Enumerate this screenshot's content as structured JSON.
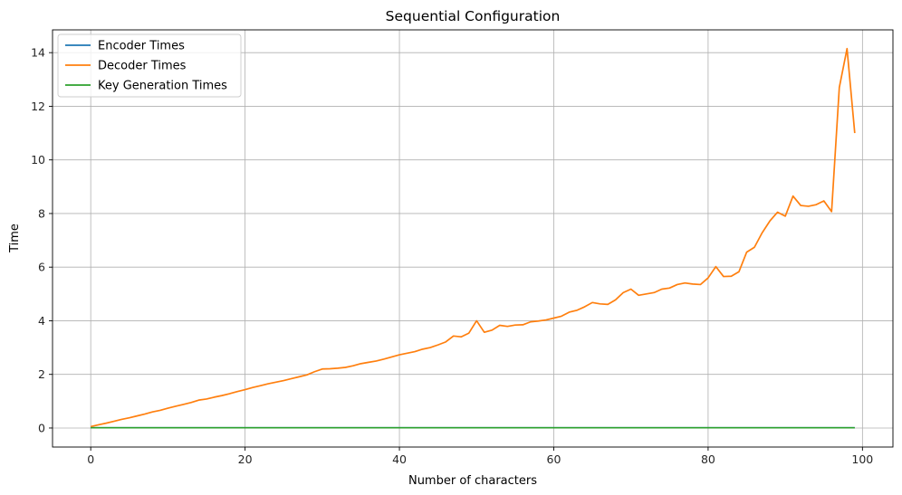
{
  "chart_data": {
    "type": "line",
    "title": "Sequential Configuration",
    "xlabel": "Number of characters",
    "ylabel": "Time",
    "xlim": [
      -4.95,
      103.95
    ],
    "ylim": [
      -0.71,
      14.85
    ],
    "xticks": [
      0,
      20,
      40,
      60,
      80,
      100
    ],
    "yticks": [
      0,
      2,
      4,
      6,
      8,
      10,
      12,
      14
    ],
    "grid": true,
    "legend_position": "top-left",
    "series": [
      {
        "name": "Encoder Times",
        "color": "#1f77b4",
        "x": [
          0,
          99
        ],
        "y": [
          0.01,
          0.01
        ]
      },
      {
        "name": "Decoder Times",
        "color": "#ff7f0e",
        "x": [
          0,
          1,
          2,
          3,
          4,
          5,
          6,
          7,
          8,
          9,
          10,
          11,
          12,
          13,
          14,
          15,
          16,
          17,
          18,
          19,
          20,
          21,
          22,
          23,
          24,
          25,
          26,
          27,
          28,
          29,
          30,
          31,
          32,
          33,
          34,
          35,
          36,
          37,
          38,
          39,
          40,
          41,
          42,
          43,
          44,
          45,
          46,
          47,
          48,
          49,
          50,
          51,
          52,
          53,
          54,
          55,
          56,
          57,
          58,
          59,
          60,
          61,
          62,
          63,
          64,
          65,
          66,
          67,
          68,
          69,
          70,
          71,
          72,
          73,
          74,
          75,
          76,
          77,
          78,
          79,
          80,
          81,
          82,
          83,
          84,
          85,
          86,
          87,
          88,
          89,
          90,
          91,
          92,
          93,
          94,
          95,
          96,
          97,
          98,
          99
        ],
        "y": [
          0.05,
          0.12,
          0.18,
          0.25,
          0.32,
          0.38,
          0.45,
          0.52,
          0.6,
          0.66,
          0.74,
          0.81,
          0.88,
          0.95,
          1.04,
          1.08,
          1.15,
          1.21,
          1.28,
          1.36,
          1.43,
          1.51,
          1.58,
          1.65,
          1.71,
          1.77,
          1.84,
          1.91,
          1.98,
          2.1,
          2.2,
          2.21,
          2.23,
          2.26,
          2.32,
          2.4,
          2.45,
          2.5,
          2.57,
          2.65,
          2.73,
          2.79,
          2.85,
          2.94,
          3.0,
          3.1,
          3.21,
          3.43,
          3.4,
          3.54,
          4.0,
          3.57,
          3.65,
          3.83,
          3.79,
          3.84,
          3.85,
          3.96,
          3.99,
          4.03,
          4.1,
          4.17,
          4.32,
          4.39,
          4.52,
          4.68,
          4.63,
          4.61,
          4.78,
          5.05,
          5.18,
          4.95,
          5.0,
          5.05,
          5.18,
          5.22,
          5.35,
          5.41,
          5.37,
          5.35,
          5.6,
          6.02,
          5.65,
          5.66,
          5.83,
          6.56,
          6.74,
          7.28,
          7.72,
          8.05,
          7.9,
          8.65,
          8.3,
          8.27,
          8.33,
          8.47,
          8.07,
          12.7,
          14.15,
          11.0
        ]
      },
      {
        "name": "Key Generation Times",
        "color": "#2ca02c",
        "x": [
          0,
          99
        ],
        "y": [
          0.01,
          0.01
        ]
      }
    ]
  }
}
